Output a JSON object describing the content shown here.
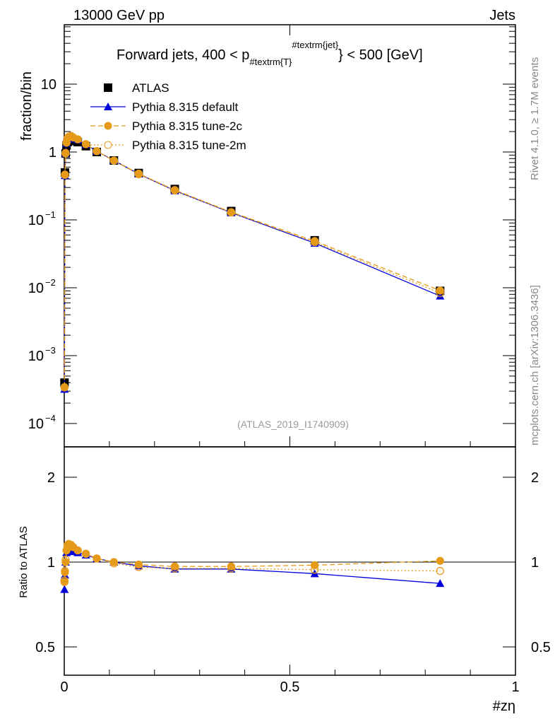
{
  "chart_data": {
    "type": "line",
    "title": "Forward jets, 400 < p_{#textrm{T}}^{#textrm{jet}} < 500 [GeV]",
    "title_main": "Forward jets, 400 < p",
    "title_sub": "#textrm{T}",
    "title_sup": "#textrm{jet}",
    "title_end": "} < 500 [GeV]",
    "top_left": "13000 GeV pp",
    "top_right": "Jets",
    "side_right_top": "Rivet 4.1.0, ≥ 1.7M events",
    "side_right_bottom": "mcplots.cern.ch [arXiv:1306.3436]",
    "analysis_id": "(ATLAS_2019_I1740909)",
    "ylabel": "fraction/bin",
    "ratio_ylabel": "Ratio to ATLAS",
    "xlabel": "#zη",
    "xlim": [
      0,
      1
    ],
    "ylim": [
      5e-05,
      50
    ],
    "ratio_ylim": [
      0.4,
      2.4
    ],
    "x_ticks": [
      "0",
      "0.5",
      "1"
    ],
    "y_ticks": [
      {
        "v": 10,
        "l": "10"
      },
      {
        "v": 1,
        "l": "1"
      },
      {
        "v": 0.1,
        "l": "10",
        "e": "−1"
      },
      {
        "v": 0.01,
        "l": "10",
        "e": "−2"
      },
      {
        "v": 0.001,
        "l": "10",
        "e": "−3"
      },
      {
        "v": 0.0001,
        "l": "10",
        "e": "−4"
      }
    ],
    "ratio_ticks": [
      "0.5",
      "1",
      "2"
    ],
    "x": [
      0.0005,
      0.0015,
      0.003,
      0.005,
      0.0075,
      0.01,
      0.015,
      0.02,
      0.03,
      0.048,
      0.072,
      0.11,
      0.165,
      0.245,
      0.37,
      0.555,
      0.833
    ],
    "series": [
      {
        "name": "ATLAS",
        "color": "#000000",
        "values": [
          0.0004,
          0.5,
          0.95,
          1.25,
          1.4,
          1.45,
          1.5,
          1.45,
          1.4,
          1.22,
          1.0,
          0.75,
          0.49,
          0.285,
          0.135,
          0.05,
          0.009
        ]
      },
      {
        "name": "Pythia 8.315 default",
        "color": "#0000dd",
        "ratio": [
          0.8,
          0.9,
          1.0,
          1.08,
          1.1,
          1.1,
          1.1,
          1.09,
          1.08,
          1.06,
          1.03,
          1.0,
          0.97,
          0.945,
          0.945,
          0.91,
          0.84
        ]
      },
      {
        "name": "Pythia 8.315 tune-2c",
        "color": "#e69a1a",
        "ratio": [
          0.85,
          0.92,
          1.0,
          1.1,
          1.14,
          1.15,
          1.15,
          1.13,
          1.1,
          1.07,
          1.03,
          1.0,
          0.98,
          0.965,
          0.965,
          0.975,
          1.01
        ]
      },
      {
        "name": "Pythia 8.315 tune-2m",
        "color": "#e69a1a",
        "ratio": [
          0.86,
          0.93,
          1.02,
          1.1,
          1.15,
          1.16,
          1.15,
          1.13,
          1.1,
          1.07,
          1.03,
          0.99,
          0.96,
          0.95,
          0.95,
          0.94,
          0.93
        ]
      }
    ]
  }
}
